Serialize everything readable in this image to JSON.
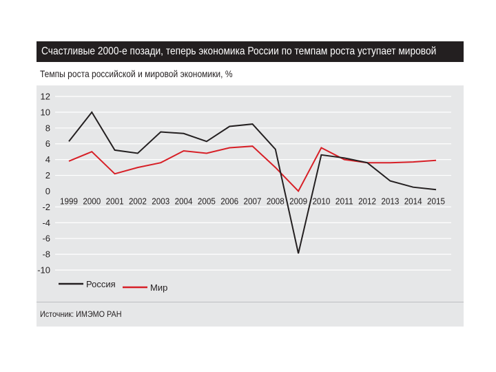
{
  "figure": {
    "title": "Счастливые 2000-е позади, теперь экономика России по темпам роста уступает мировой",
    "subtitle": "Темпы роста российской и мировой экономики, %",
    "source": "Источник: ИМЭМО РАН"
  },
  "colors": {
    "header_background": "#231f20",
    "panel_background": "#e6e7e8",
    "russia": "#231f20",
    "world": "#d71f26",
    "gridline": "#ffffff"
  },
  "chart_data": {
    "type": "line",
    "title": "Темпы роста российской и мировой экономики, %",
    "x": [
      "1999",
      "2000",
      "2001",
      "2002",
      "2003",
      "2004",
      "2005",
      "2006",
      "2007",
      "2008",
      "2009",
      "2010",
      "2011",
      "2012",
      "2013",
      "2014",
      "2015"
    ],
    "series": [
      {
        "name": "Россия",
        "color": "#231f20",
        "values": [
          6.3,
          10.0,
          5.2,
          4.8,
          7.5,
          7.3,
          6.3,
          8.2,
          8.5,
          5.3,
          -7.9,
          4.6,
          4.2,
          3.6,
          1.3,
          0.5,
          0.2
        ]
      },
      {
        "name": "Мир",
        "color": "#d71f26",
        "values": [
          3.8,
          5.0,
          2.2,
          3.0,
          3.6,
          5.1,
          4.8,
          5.5,
          5.7,
          3.0,
          0.0,
          5.5,
          4.0,
          3.6,
          3.6,
          3.7,
          3.9
        ]
      }
    ],
    "y_ticks": [
      "12",
      "10",
      "8",
      "6",
      "4",
      "2",
      "0",
      "-2",
      "-4",
      "-6",
      "-8",
      "-10"
    ],
    "ylim": [
      -10,
      12
    ],
    "grid": true,
    "legend_position": "bottom-left"
  }
}
